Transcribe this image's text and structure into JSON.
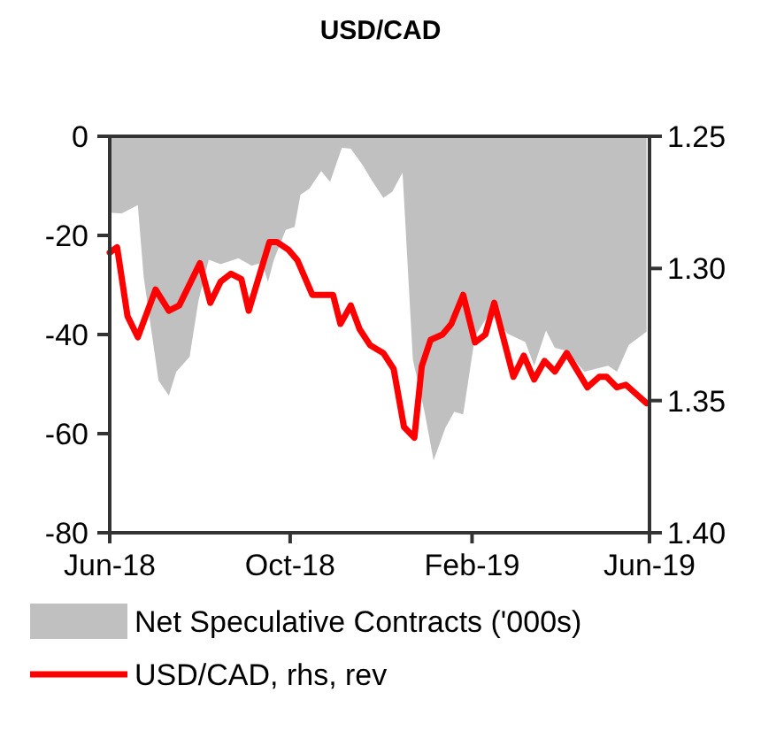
{
  "chart_data": {
    "type": "area",
    "title": "USD/CAD",
    "xlim": [
      "2018-06-01",
      "2019-06-01"
    ],
    "xticks": [
      {
        "value": "2018-06",
        "label": "Jun-18"
      },
      {
        "value": "2018-10",
        "label": "Oct-18"
      },
      {
        "value": "2019-02",
        "label": "Feb-19"
      },
      {
        "value": "2019-06",
        "label": "Jun-19"
      }
    ],
    "ylim": [
      -80,
      0
    ],
    "yticks": [
      -80,
      -60,
      -40,
      -20,
      0
    ],
    "y2lim": [
      1.4,
      1.25
    ],
    "y2ticks": [
      {
        "value": 1.25,
        "label": "1.25"
      },
      {
        "value": 1.3,
        "label": "1.30"
      },
      {
        "value": 1.35,
        "label": "1.35"
      },
      {
        "value": 1.4,
        "label": "1.40"
      }
    ],
    "legend": "bottom",
    "grid": false,
    "series": [
      {
        "name": "Net Speculative Contracts ('000s)",
        "color": "#c0c0c0",
        "x": [
          "2018-06-01",
          "2018-06-09",
          "2018-06-20",
          "2018-06-24",
          "2018-07-04",
          "2018-07-11",
          "2018-07-16",
          "2018-07-25",
          "2018-07-31",
          "2018-08-07",
          "2018-08-15",
          "2018-08-27",
          "2018-09-05",
          "2018-09-12",
          "2018-09-16",
          "2018-09-20",
          "2018-09-28",
          "2018-10-04",
          "2018-10-08",
          "2018-10-14",
          "2018-10-22",
          "2018-10-28",
          "2018-11-05",
          "2018-11-11",
          "2018-11-19",
          "2018-11-25",
          "2018-12-03",
          "2018-12-09",
          "2018-12-16",
          "2018-12-23",
          "2018-12-31",
          "2019-01-06",
          "2019-01-14",
          "2019-01-20",
          "2019-01-26",
          "2019-02-03",
          "2019-02-13",
          "2019-02-25",
          "2019-03-09",
          "2019-03-15",
          "2019-03-23",
          "2019-03-29",
          "2019-04-06",
          "2019-04-18",
          "2019-05-04",
          "2019-05-10",
          "2019-05-18",
          "2019-05-30"
        ],
        "values": [
          -15.4,
          -15.6,
          -13.9,
          -28.5,
          -49.3,
          -52.3,
          -47.5,
          -44.5,
          -33.2,
          -24.9,
          -25.8,
          -24.6,
          -26.1,
          -25.5,
          -29.4,
          -24.9,
          -18.9,
          -18.3,
          -11.8,
          -10.6,
          -7,
          -9.2,
          -2.3,
          -2.5,
          -5.8,
          -8.8,
          -12.4,
          -11.2,
          -7.3,
          -45.1,
          -55.8,
          -65.4,
          -58.8,
          -55.6,
          -56.1,
          -40.4,
          -35.6,
          -39.8,
          -41.5,
          -46.3,
          -39.2,
          -42.7,
          -43.3,
          -47.5,
          -46.3,
          -47.5,
          -42.1,
          -39.4
        ]
      },
      {
        "name": "USD/CAD, rhs, rev",
        "type": "line",
        "axis": "y2",
        "color": "#ff0000",
        "x": [
          "2018-06-01",
          "2018-06-06",
          "2018-06-13",
          "2018-06-20",
          "2018-07-02",
          "2018-07-11",
          "2018-07-18",
          "2018-08-01",
          "2018-08-08",
          "2018-08-15",
          "2018-08-22",
          "2018-08-29",
          "2018-09-03",
          "2018-09-17",
          "2018-09-22",
          "2018-09-30",
          "2018-10-06",
          "2018-10-16",
          "2018-10-30",
          "2018-11-04",
          "2018-11-11",
          "2018-11-17",
          "2018-11-24",
          "2018-11-30",
          "2018-12-03",
          "2018-12-10",
          "2018-12-17",
          "2018-12-24",
          "2018-12-29",
          "2019-01-04",
          "2019-01-12",
          "2019-01-18",
          "2019-01-26",
          "2019-02-03",
          "2019-02-10",
          "2019-02-16",
          "2019-03-01",
          "2019-03-08",
          "2019-03-15",
          "2019-03-22",
          "2019-03-29",
          "2019-04-06",
          "2019-04-20",
          "2019-04-28",
          "2019-05-03",
          "2019-05-10",
          "2019-05-16",
          "2019-05-30"
        ],
        "values": [
          1.294,
          1.292,
          1.318,
          1.326,
          1.308,
          1.316,
          1.314,
          1.298,
          1.313,
          1.305,
          1.302,
          1.304,
          1.316,
          1.29,
          1.29,
          1.293,
          1.297,
          1.31,
          1.31,
          1.321,
          1.314,
          1.323,
          1.329,
          1.331,
          1.332,
          1.338,
          1.36,
          1.364,
          1.337,
          1.327,
          1.325,
          1.321,
          1.31,
          1.328,
          1.325,
          1.313,
          1.341,
          1.333,
          1.342,
          1.335,
          1.339,
          1.332,
          1.345,
          1.341,
          1.341,
          1.345,
          1.344,
          1.351
        ]
      }
    ]
  }
}
